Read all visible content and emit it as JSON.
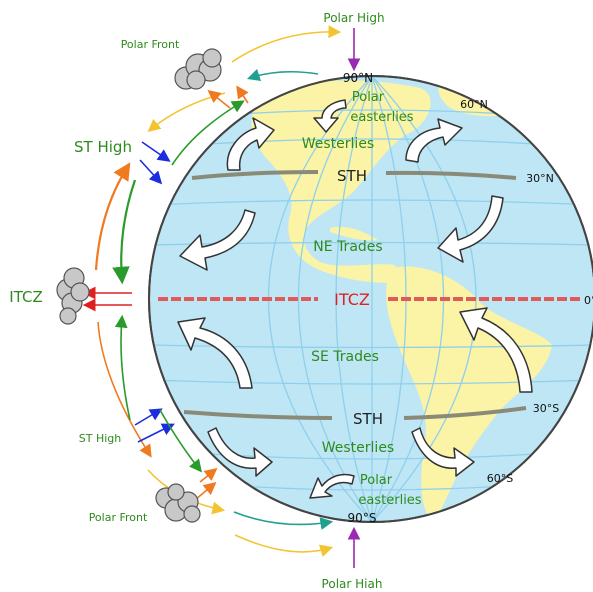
{
  "labels": {
    "polar_high_top": "Polar High",
    "polar_high_bottom": "Polar Hiah",
    "polar_front_top": "Polar Front",
    "polar_front_bottom": "Polar Front",
    "st_high_top": "ST High",
    "st_high_bottom": "ST High",
    "itcz_left": "ITCZ",
    "itcz_center": "ITCZ",
    "north_pole": "90°N",
    "south_pole": "90°S",
    "lat_60n": "60°N",
    "lat_30n": "30°N",
    "lat_0": "0°",
    "lat_30s": "30°S",
    "lat_60s": "60°S",
    "polar_easterlies_n_1": "Polar",
    "polar_easterlies_n_2": "easterlies",
    "polar_easterlies_s_1": "Polar",
    "polar_easterlies_s_2": "easterlies",
    "westerlies_n": "Westerlies",
    "westerlies_s": "Westerlies",
    "sth_n": "STH",
    "sth_s": "STH",
    "ne_trades": "NE Trades",
    "se_trades": "SE Trades"
  },
  "colors": {
    "ocean": "#bfe6f5",
    "land": "#fbf3a6",
    "grid": "#8fd0ec",
    "itcz_line": "#e05a5a",
    "sth_line": "#8a8a78",
    "green_text": "#2e8b1e",
    "red_text": "#e02020",
    "orange": "#f07a20",
    "green": "#2a9a2a",
    "blue": "#1a2ee0",
    "yellow": "#f4c430",
    "teal": "#20a090",
    "purple": "#9a2ab0"
  }
}
